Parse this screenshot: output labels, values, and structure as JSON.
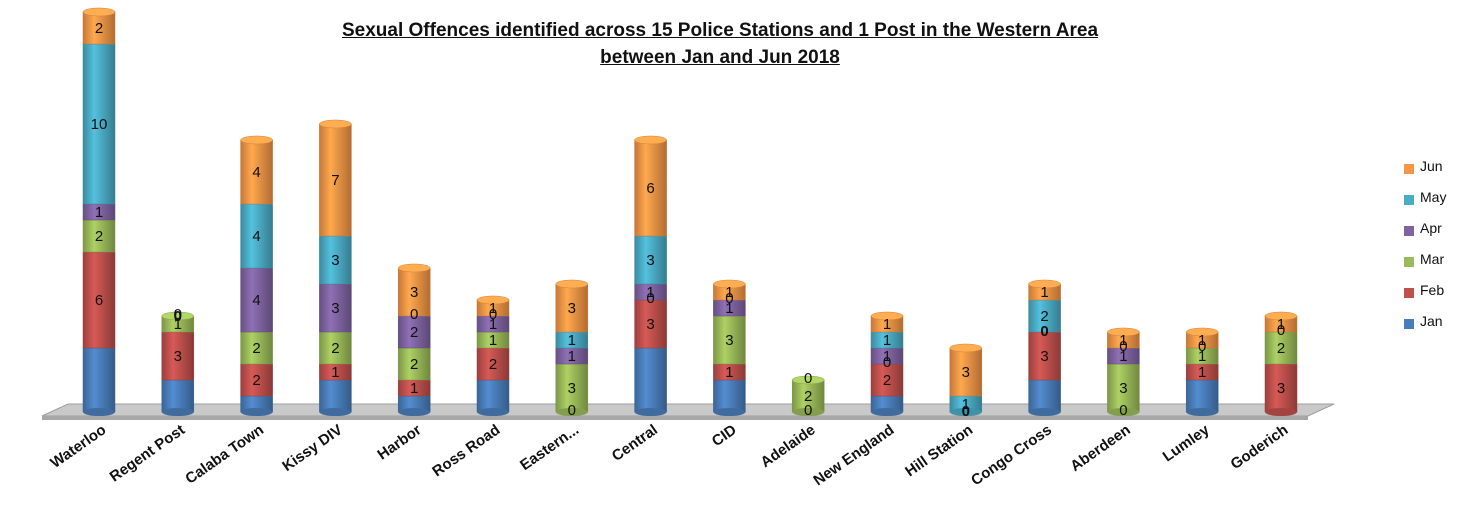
{
  "chart_data": {
    "type": "bar",
    "stacked": true,
    "title_line1": "Sexual Offences identified  across 15 Police Stations and 1 Post in the Western Area",
    "title_line2": "between Jan and Jun 2018",
    "categories": [
      "Waterloo",
      "Regent Post",
      "Calaba Town",
      "Kissy DIV",
      "Harbor",
      "Ross Road",
      "Eastern...",
      "Central",
      "CID",
      "Adelaide",
      "New England",
      "Hill Station",
      "Congo Cross",
      "Aberdeen",
      "Lumley",
      "Goderich"
    ],
    "series": [
      {
        "name": "Jan",
        "color": "#4a7ebb",
        "values": [
          4,
          2,
          1,
          2,
          1,
          2,
          0,
          4,
          2,
          0,
          1,
          0,
          2,
          0,
          2,
          0
        ]
      },
      {
        "name": "Feb",
        "color": "#c0504d",
        "values": [
          6,
          3,
          2,
          1,
          1,
          2,
          0,
          3,
          1,
          0,
          2,
          0,
          3,
          0,
          1,
          3
        ]
      },
      {
        "name": "Mar",
        "color": "#9bbb59",
        "values": [
          2,
          1,
          2,
          2,
          2,
          1,
          3,
          0,
          3,
          2,
          0,
          0,
          0,
          3,
          1,
          2
        ]
      },
      {
        "name": "Apr",
        "color": "#8064a2",
        "values": [
          1,
          0,
          4,
          3,
          2,
          1,
          1,
          1,
          1,
          0,
          1,
          0,
          0,
          1,
          0,
          0
        ]
      },
      {
        "name": "May",
        "color": "#4bacc6",
        "values": [
          10,
          0,
          4,
          3,
          0,
          0,
          1,
          3,
          0,
          0,
          1,
          1,
          2,
          0,
          0,
          0
        ]
      },
      {
        "name": "Jun",
        "color": "#f79646",
        "values": [
          2,
          0,
          4,
          7,
          3,
          1,
          3,
          6,
          1,
          0,
          1,
          3,
          1,
          1,
          1,
          1
        ]
      }
    ],
    "segment_labels": [
      [
        "",
        "6",
        "2",
        "1",
        "10",
        "2"
      ],
      [
        "",
        "3",
        "1",
        "0",
        "",
        ""
      ],
      [
        "",
        "2",
        "2",
        "4",
        "4",
        "4"
      ],
      [
        "",
        "1",
        "2",
        "3",
        "3",
        "7"
      ],
      [
        "",
        "1",
        "2",
        "2",
        "0",
        "3"
      ],
      [
        "",
        "2",
        "1",
        "1",
        "0",
        "1"
      ],
      [
        "0",
        "",
        "3",
        "1",
        "1",
        "3"
      ],
      [
        "",
        "3",
        "0",
        "1",
        "3",
        "6"
      ],
      [
        "",
        "1",
        "3",
        "1",
        "0",
        "1"
      ],
      [
        "0",
        "",
        "2",
        "",
        "0",
        ""
      ],
      [
        "",
        "2",
        "0",
        "1",
        "1",
        "1"
      ],
      [
        "",
        "",
        "",
        "",
        "1",
        "3"
      ],
      [
        "",
        "3",
        "",
        "",
        "2",
        "1"
      ],
      [
        "0",
        "",
        "3",
        "1",
        "0",
        "1"
      ],
      [
        "",
        "1",
        "1",
        "",
        "0",
        "1"
      ],
      [
        "",
        "3",
        "2",
        "",
        "0",
        "1"
      ]
    ],
    "extra_labels": [
      {
        "category": 11,
        "text": "0"
      },
      {
        "category": 12,
        "text": "0"
      },
      {
        "category": 1,
        "text": "0"
      }
    ],
    "ylim": [
      0,
      25
    ],
    "legend_position": "right",
    "grid": false
  }
}
